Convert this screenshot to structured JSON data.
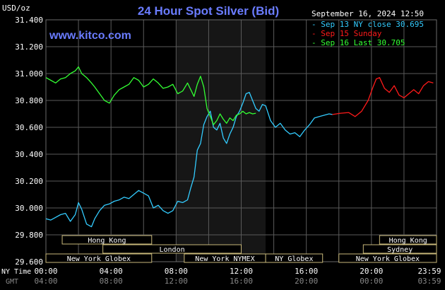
{
  "header": {
    "currency_label": "USD/oz",
    "title": "24 Hour Spot Silver (Bid)",
    "timestamp": "September 16, 2024 12:50",
    "watermark": "www.kitco.com"
  },
  "legend": [
    {
      "text": "Sep 13 NY close 30.695",
      "color": "#33ccff"
    },
    {
      "text": "Sep 15 Sunday",
      "color": "#ff1a1a"
    },
    {
      "text": "Sep 16 Last 30.705",
      "color": "#33ff33"
    }
  ],
  "colors": {
    "background": "#000000",
    "grid": "#5a5a5a",
    "shaded_region": "#161616",
    "axis_text": "#ffffff",
    "title": "#6a7cff",
    "watermark": "#6a7cff",
    "session_box_fill": "#000000",
    "session_box_border": "#c8b87a",
    "session_text": "#ffffff"
  },
  "sessions": [
    {
      "label": "Hong Kong",
      "start": 1.0,
      "end": 6.5
    },
    {
      "label": "London",
      "start": 3.5,
      "end": 12.0
    },
    {
      "label": "New York Globex",
      "start": 0.0,
      "end": 6.5
    },
    {
      "label": "New York NYMEX",
      "start": 8.5,
      "end": 13.5
    },
    {
      "label": "NY Globex",
      "start": 13.5,
      "end": 17.0
    },
    {
      "label": "Hong Kong",
      "start": 20.5,
      "end": 24.0
    },
    {
      "label": "Sydney",
      "start": 19.5,
      "end": 24.0
    },
    {
      "label": "New York Globex",
      "start": 18.0,
      "end": 24.0
    }
  ],
  "x_axis": {
    "row1_label": "NY Time",
    "row2_label": "GMT",
    "ny_ticks": [
      "00:00",
      "04:00",
      "08:00",
      "12:00",
      "16:00",
      "20:00",
      "23:59"
    ],
    "gmt_ticks": [
      "04:00",
      "08:00",
      "12:00",
      "16:00",
      "20:00",
      "00:00",
      "03:59"
    ]
  },
  "chart_data": {
    "type": "line",
    "title": "24 Hour Spot Silver (Bid)",
    "ylabel": "USD/oz",
    "x_unit": "hours (NY time)",
    "xlim": [
      0,
      24
    ],
    "ylim": [
      29.6,
      31.4
    ],
    "y_ticks": [
      "31.400",
      "31.200",
      "31.000",
      "30.800",
      "30.600",
      "30.400",
      "30.200",
      "30.000",
      "29.800",
      "29.600"
    ],
    "shaded_region_hours": [
      8.0,
      13.5
    ],
    "grid": true,
    "series": [
      {
        "name": "Sep 13 NY close 30.695",
        "color": "#33ccff",
        "x": [
          0.0,
          0.3,
          0.6,
          0.9,
          1.2,
          1.5,
          1.8,
          2.0,
          2.2,
          2.5,
          2.8,
          3.0,
          3.3,
          3.6,
          3.9,
          4.2,
          4.5,
          4.8,
          5.1,
          5.4,
          5.7,
          6.0,
          6.3,
          6.6,
          6.9,
          7.2,
          7.5,
          7.8,
          8.1,
          8.4,
          8.7,
          8.9,
          9.1,
          9.3,
          9.5,
          9.7,
          9.9,
          10.1,
          10.3,
          10.5,
          10.7,
          10.9,
          11.1,
          11.3,
          11.5,
          11.7,
          11.9,
          12.1,
          12.3,
          12.5,
          12.7,
          12.9,
          13.1,
          13.3,
          13.5,
          13.8,
          14.1,
          14.4,
          14.7,
          15.0,
          15.3,
          15.6,
          15.9,
          16.2,
          16.5,
          16.8,
          17.1,
          17.4,
          17.6
        ],
        "y": [
          29.92,
          29.91,
          29.93,
          29.95,
          29.96,
          29.9,
          29.95,
          30.04,
          29.99,
          29.88,
          29.86,
          29.92,
          29.98,
          30.02,
          30.03,
          30.05,
          30.06,
          30.08,
          30.07,
          30.1,
          30.13,
          30.11,
          30.09,
          30.0,
          30.02,
          29.98,
          29.96,
          29.98,
          30.05,
          30.04,
          30.06,
          30.15,
          30.23,
          30.43,
          30.48,
          30.62,
          30.68,
          30.72,
          30.6,
          30.58,
          30.63,
          30.52,
          30.48,
          30.55,
          30.6,
          30.68,
          30.72,
          30.78,
          30.85,
          30.86,
          30.8,
          30.74,
          30.72,
          30.77,
          30.76,
          30.65,
          30.6,
          30.63,
          30.58,
          30.55,
          30.56,
          30.53,
          30.58,
          30.62,
          30.67,
          30.68,
          30.69,
          30.7,
          30.695
        ]
      },
      {
        "name": "Sep 15 Sunday",
        "color": "#ff1a1a",
        "x": [
          17.6,
          18.1,
          18.6,
          19.0,
          19.4,
          19.8,
          20.1,
          20.3,
          20.5,
          20.8,
          21.1,
          21.4,
          21.7,
          22.0,
          22.3,
          22.6,
          22.9,
          23.2,
          23.5,
          23.8
        ],
        "y": [
          30.695,
          30.705,
          30.71,
          30.68,
          30.72,
          30.8,
          30.9,
          30.96,
          30.97,
          30.89,
          30.86,
          30.91,
          30.84,
          30.82,
          30.85,
          30.88,
          30.85,
          30.91,
          30.94,
          30.93
        ]
      },
      {
        "name": "Sep 16 Last 30.705",
        "color": "#33ff33",
        "x": [
          0.0,
          0.3,
          0.6,
          0.9,
          1.2,
          1.5,
          1.8,
          2.0,
          2.2,
          2.5,
          2.8,
          3.0,
          3.3,
          3.6,
          3.9,
          4.2,
          4.5,
          4.8,
          5.1,
          5.4,
          5.7,
          6.0,
          6.3,
          6.6,
          6.9,
          7.2,
          7.5,
          7.8,
          8.1,
          8.4,
          8.7,
          8.9,
          9.1,
          9.3,
          9.5,
          9.7,
          9.9,
          10.1,
          10.3,
          10.5,
          10.7,
          10.9,
          11.1,
          11.3,
          11.5,
          11.7,
          11.9,
          12.1,
          12.3,
          12.5,
          12.7,
          12.9
        ],
        "y": [
          30.97,
          30.95,
          30.93,
          30.96,
          30.97,
          31.0,
          31.02,
          31.05,
          31.0,
          30.97,
          30.93,
          30.9,
          30.85,
          30.8,
          30.78,
          30.84,
          30.88,
          30.9,
          30.92,
          30.97,
          30.95,
          30.9,
          30.92,
          30.96,
          30.93,
          30.89,
          30.9,
          30.92,
          30.85,
          30.87,
          30.93,
          30.88,
          30.83,
          30.92,
          30.98,
          30.9,
          30.74,
          30.68,
          30.62,
          30.65,
          30.7,
          30.66,
          30.63,
          30.67,
          30.65,
          30.69,
          30.7,
          30.72,
          30.7,
          30.71,
          30.7,
          30.705
        ]
      }
    ]
  }
}
